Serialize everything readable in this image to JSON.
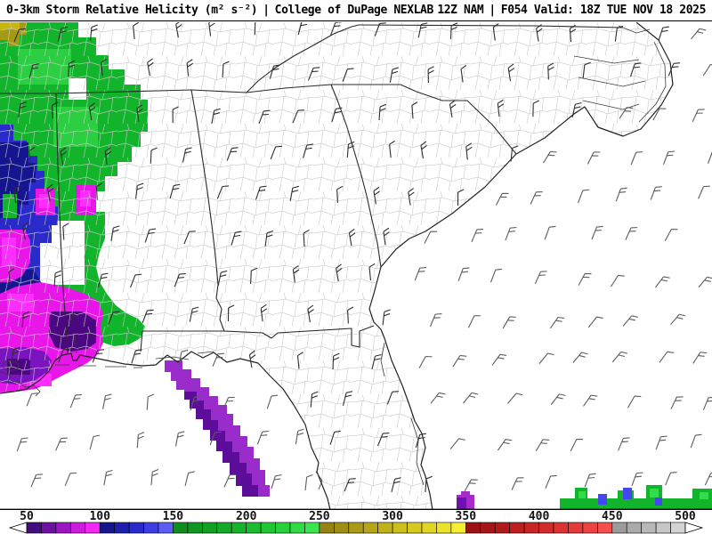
{
  "header": {
    "product_title": "0-3km Storm Relative Helicity (m² s⁻²)",
    "separator": "|",
    "source": "College of DuPage NEXLAB",
    "model_run": "12Z NAM",
    "separator2": "|",
    "valid_time": "F054 Valid: 18Z TUE NOV 18 2025"
  },
  "colorbar": {
    "tick_labels": [
      "50",
      "100",
      "150",
      "200",
      "250",
      "300",
      "350",
      "400",
      "450",
      "500"
    ],
    "units_per_segment": 10,
    "label_color": "#141414",
    "arrow_fill": "#ffffff",
    "segment_colors": [
      "#440c7e",
      "#6d11a1",
      "#9a16c2",
      "#cc1cdd",
      "#f327f3",
      "#15158f",
      "#1e1ead",
      "#2a2aca",
      "#3d3de4",
      "#5d5df5",
      "#0c8f1f",
      "#0e9821",
      "#10a124",
      "#13aa27",
      "#16b32b",
      "#1abd2f",
      "#1fc734",
      "#26d13a",
      "#2fdb42",
      "#3be64c",
      "#948312",
      "#9f8e13",
      "#aa9a15",
      "#b5a617",
      "#c0b21a",
      "#cbbe1d",
      "#d6ca21",
      "#e1d626",
      "#ece22c",
      "#f5ee35",
      "#9c1212",
      "#a71616",
      "#b21a1a",
      "#bd1f1f",
      "#c82525",
      "#d22b2b",
      "#dc3232",
      "#e53a3a",
      "#ee4343",
      "#f64d4d",
      "#9c9c9c",
      "#aaaaaa",
      "#b8b8b8",
      "#c6c6c6",
      "#d4d4d4"
    ]
  },
  "map": {
    "land_fill": "#ffffff",
    "county_line_color": "#c9c9c9",
    "state_line_color": "#2b2b2b",
    "coast_line_color": "#222222",
    "wind_barb_land_color": "#2e2e2e",
    "wind_barb_ocean_color": "#5c5c5c",
    "palette": {
      "green": "#12b42c",
      "bright_green": "#32dd4a",
      "blue": "#2a2aca",
      "navy": "#15158f",
      "magenta": "#e816e8",
      "bright_magenta": "#ff2dff",
      "purple": "#7a14be",
      "dark_purple": "#4b0782",
      "streak_purple": "#9a2ccc",
      "streak_dark_purple": "#5c0d9a",
      "olive": "#a59a14",
      "gold": "#c9b70e"
    }
  }
}
